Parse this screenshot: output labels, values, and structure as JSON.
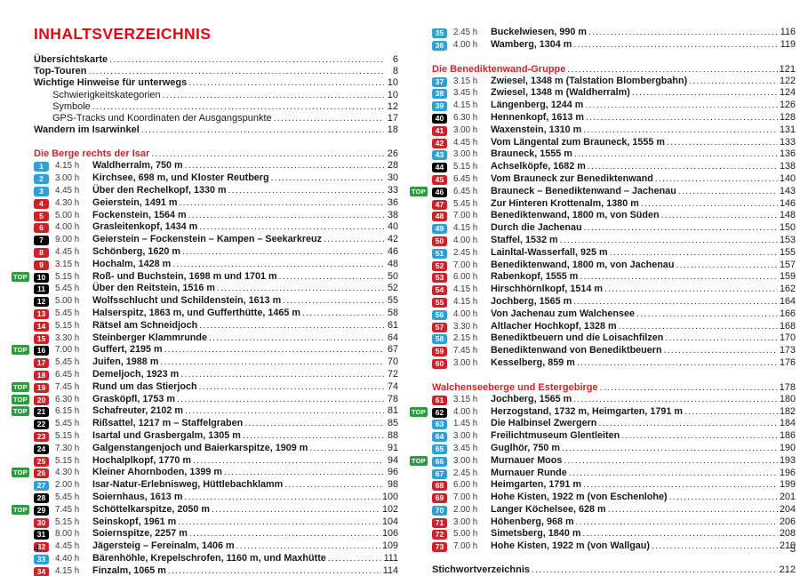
{
  "title": "INHALTSVERZEICHNIS",
  "labels": {
    "top": "TOP"
  },
  "colors": {
    "title_red": "#e30613",
    "heading_red": "#d2232a",
    "badge_easy_blue": "#2f9fd5",
    "badge_medium_red": "#cd2328",
    "badge_hard_black": "#000000",
    "top_badge_green": "#2f9b41"
  },
  "pages": [
    {
      "page_number": "4",
      "blocks": [
        {
          "type": "frontmatter",
          "items": [
            {
              "label": "Übersichtskarte",
              "page": "6",
              "bold": true,
              "indent": false
            },
            {
              "label": "Top-Touren",
              "page": "8",
              "bold": true,
              "indent": false
            },
            {
              "label": "Wichtige Hinweise für unterwegs",
              "page": "10",
              "bold": true,
              "indent": false
            },
            {
              "label": "Schwierigkeitskategorien",
              "page": "10",
              "bold": false,
              "indent": true
            },
            {
              "label": "Symbole",
              "page": "12",
              "bold": false,
              "indent": true
            },
            {
              "label": "GPS-Tracks und Koordinaten der Ausgangspunkte",
              "page": "17",
              "bold": false,
              "indent": true
            },
            {
              "label": "Wandern im Isarwinkel",
              "page": "18",
              "bold": true,
              "indent": false
            }
          ]
        },
        {
          "type": "heading",
          "label": "Die Berge rechts der Isar",
          "page": "26"
        },
        {
          "type": "tours",
          "items": [
            {
              "num": "1",
              "time": "4.15 h",
              "title": "Waldherralm, 750 m",
              "page": "28",
              "diff": "easy",
              "top": false
            },
            {
              "num": "2",
              "time": "3.00 h",
              "title": "Kirchsee, 698 m, und Kloster Reutberg",
              "page": "30",
              "diff": "easy",
              "top": false
            },
            {
              "num": "3",
              "time": "4.45 h",
              "title": "Über den Rechelkopf, 1330 m",
              "page": "33",
              "diff": "easy",
              "top": false
            },
            {
              "num": "4",
              "time": "4.30 h",
              "title": "Geierstein, 1491 m",
              "page": "36",
              "diff": "medium",
              "top": false
            },
            {
              "num": "5",
              "time": "5.00 h",
              "title": "Fockenstein, 1564 m",
              "page": "38",
              "diff": "medium",
              "top": false
            },
            {
              "num": "6",
              "time": "4.00 h",
              "title": "Grasleitenkopf, 1434 m",
              "page": "40",
              "diff": "medium",
              "top": false
            },
            {
              "num": "7",
              "time": "9.00 h",
              "title": "Geierstein – Fockenstein – Kampen – Seekarkreuz",
              "page": "42",
              "diff": "hard",
              "top": false
            },
            {
              "num": "8",
              "time": "4.45 h",
              "title": "Schönberg, 1620 m",
              "page": "46",
              "diff": "medium",
              "top": false
            },
            {
              "num": "9",
              "time": "3.15 h",
              "title": "Hochalm, 1428 m",
              "page": "48",
              "diff": "medium",
              "top": false
            },
            {
              "num": "10",
              "time": "5.15 h",
              "title": "Roß- und Buchstein, 1698 m und 1701 m",
              "page": "50",
              "diff": "hard",
              "top": true
            },
            {
              "num": "11",
              "time": "5.45 h",
              "title": "Über den Reitstein, 1516 m",
              "page": "52",
              "diff": "hard",
              "top": false
            },
            {
              "num": "12",
              "time": "5.00 h",
              "title": "Wolfsschlucht und Schildenstein, 1613 m",
              "page": "55",
              "diff": "hard",
              "top": false
            },
            {
              "num": "13",
              "time": "5.45 h",
              "title": "Halserspitz, 1863 m, und Gufferthütte, 1465 m",
              "page": "58",
              "diff": "medium",
              "top": false
            },
            {
              "num": "14",
              "time": "5.15 h",
              "title": "Rätsel am Schneidjoch",
              "page": "61",
              "diff": "medium",
              "top": false
            },
            {
              "num": "15",
              "time": "3.30 h",
              "title": "Steinberger Klammrunde",
              "page": "64",
              "diff": "medium",
              "top": false
            },
            {
              "num": "16",
              "time": "7.00 h",
              "title": "Guffert, 2195 m",
              "page": "67",
              "diff": "hard",
              "top": true
            },
            {
              "num": "17",
              "time": "5.45 h",
              "title": "Juifen, 1988 m",
              "page": "70",
              "diff": "medium",
              "top": false
            },
            {
              "num": "18",
              "time": "6.45 h",
              "title": "Demeljoch, 1923 m",
              "page": "72",
              "diff": "medium",
              "top": false
            },
            {
              "num": "19",
              "time": "7.45 h",
              "title": "Rund um das Stierjoch",
              "page": "74",
              "diff": "medium",
              "top": true
            },
            {
              "num": "20",
              "time": "6.30 h",
              "title": "Grasköpfl, 1753 m",
              "page": "78",
              "diff": "medium",
              "top": true
            },
            {
              "num": "21",
              "time": "6.15 h",
              "title": "Schafreuter, 2102 m",
              "page": "81",
              "diff": "hard",
              "top": true
            },
            {
              "num": "22",
              "time": "5.45 h",
              "title": "Rißsattel, 1217 m – Staffelgraben",
              "page": "85",
              "diff": "hard",
              "top": false
            },
            {
              "num": "23",
              "time": "5.15 h",
              "title": "Isartal und Grasbergalm, 1305 m",
              "page": "88",
              "diff": "medium",
              "top": false
            },
            {
              "num": "24",
              "time": "7.30 h",
              "title": "Galgenstangenjoch und Baierkarspitze, 1909 m",
              "page": "91",
              "diff": "hard",
              "top": false
            },
            {
              "num": "25",
              "time": "5.15 h",
              "title": "Hochalplkopf, 1770 m",
              "page": "94",
              "diff": "medium",
              "top": false
            },
            {
              "num": "26",
              "time": "4.30 h",
              "title": "Kleiner Ahornboden, 1399 m",
              "page": "96",
              "diff": "medium",
              "top": true
            },
            {
              "num": "27",
              "time": "2.00 h",
              "title": "Isar-Natur-Erlebnisweg, Hüttlebachklamm",
              "page": "98",
              "diff": "easy",
              "top": false
            },
            {
              "num": "28",
              "time": "5.45 h",
              "title": "Soiernhaus, 1613 m",
              "page": "100",
              "diff": "hard",
              "top": false
            },
            {
              "num": "29",
              "time": "7.45 h",
              "title": "Schöttelkarspitze, 2050 m",
              "page": "102",
              "diff": "hard",
              "top": true
            },
            {
              "num": "30",
              "time": "5.15 h",
              "title": "Seinskopf, 1961 m",
              "page": "104",
              "diff": "medium",
              "top": false
            },
            {
              "num": "31",
              "time": "8.00 h",
              "title": "Soiernspitze, 2257 m",
              "page": "106",
              "diff": "hard",
              "top": false
            },
            {
              "num": "32",
              "time": "4.45 h",
              "title": "Jägersteig – Fereinalm, 1406 m",
              "page": "109",
              "diff": "medium",
              "top": false
            },
            {
              "num": "33",
              "time": "4.40 h",
              "title": "Bärenhöhle, Krepelschrofen, 1160 m, und Maxhütte",
              "page": "111",
              "diff": "easy",
              "top": false
            },
            {
              "num": "34",
              "time": "4.15 h",
              "title": "Finzalm, 1065 m",
              "page": "114",
              "diff": "medium",
              "top": false
            }
          ]
        }
      ]
    },
    {
      "page_number": "5",
      "blocks": [
        {
          "type": "tours",
          "items": [
            {
              "num": "35",
              "time": "2.45 h",
              "title": "Buckelwiesen, 990 m",
              "page": "116",
              "diff": "easy",
              "top": false
            },
            {
              "num": "36",
              "time": "4.00 h",
              "title": "Wamberg, 1304 m",
              "page": "119",
              "diff": "easy",
              "top": false
            }
          ]
        },
        {
          "type": "heading",
          "label": "Die Benediktenwand-Gruppe",
          "page": "121"
        },
        {
          "type": "tours",
          "items": [
            {
              "num": "37",
              "time": "3.15 h",
              "title": "Zwiesel, 1348 m (Talstation Blombergbahn)",
              "page": "122",
              "diff": "easy",
              "top": false
            },
            {
              "num": "38",
              "time": "3.45 h",
              "title": "Zwiesel, 1348 m (Waldherralm)",
              "page": "124",
              "diff": "easy",
              "top": false
            },
            {
              "num": "39",
              "time": "4.15 h",
              "title": "Längenberg, 1244 m",
              "page": "126",
              "diff": "easy",
              "top": false
            },
            {
              "num": "40",
              "time": "6.30 h",
              "title": "Hennenkopf, 1613 m",
              "page": "128",
              "diff": "hard",
              "top": false
            },
            {
              "num": "41",
              "time": "3.00 h",
              "title": "Waxenstein, 1310 m",
              "page": "131",
              "diff": "medium",
              "top": false
            },
            {
              "num": "42",
              "time": "4.45 h",
              "title": "Vom Längental zum Brauneck, 1555 m",
              "page": "133",
              "diff": "medium",
              "top": false
            },
            {
              "num": "43",
              "time": "3.00 h",
              "title": "Brauneck, 1555 m",
              "page": "136",
              "diff": "easy",
              "top": false
            },
            {
              "num": "44",
              "time": "5.15 h",
              "title": "Achselköpfe, 1682 m",
              "page": "138",
              "diff": "hard",
              "top": false
            },
            {
              "num": "45",
              "time": "6.45 h",
              "title": "Vom Brauneck zur Benediktenwand",
              "page": "140",
              "diff": "medium",
              "top": false
            },
            {
              "num": "46",
              "time": "6.45 h",
              "title": "Brauneck – Benediktenwand – Jachenau",
              "page": "143",
              "diff": "hard",
              "top": true
            },
            {
              "num": "47",
              "time": "5.45 h",
              "title": "Zur Hinteren Krottenalm, 1380 m",
              "page": "146",
              "diff": "medium",
              "top": false
            },
            {
              "num": "48",
              "time": "7.00 h",
              "title": "Benediktenwand, 1800 m, von Süden",
              "page": "148",
              "diff": "medium",
              "top": false
            },
            {
              "num": "49",
              "time": "4.15 h",
              "title": "Durch die Jachenau",
              "page": "150",
              "diff": "easy",
              "top": false
            },
            {
              "num": "50",
              "time": "4.00 h",
              "title": "Staffel, 1532 m",
              "page": "153",
              "diff": "medium",
              "top": false
            },
            {
              "num": "51",
              "time": "2.45 h",
              "title": "Lainltal-Wasserfall, 925 m",
              "page": "155",
              "diff": "easy",
              "top": false
            },
            {
              "num": "52",
              "time": "7.00 h",
              "title": "Benediktenwand, 1800 m, von Jachenau",
              "page": "157",
              "diff": "medium",
              "top": false
            },
            {
              "num": "53",
              "time": "6.00 h",
              "title": "Rabenkopf, 1555 m",
              "page": "159",
              "diff": "medium",
              "top": false
            },
            {
              "num": "54",
              "time": "4.15 h",
              "title": "Hirschhörnlkopf, 1514 m",
              "page": "162",
              "diff": "medium",
              "top": false
            },
            {
              "num": "55",
              "time": "4.15 h",
              "title": "Jochberg, 1565 m",
              "page": "164",
              "diff": "medium",
              "top": false
            },
            {
              "num": "56",
              "time": "4.00 h",
              "title": "Von Jachenau zum Walchensee",
              "page": "166",
              "diff": "easy",
              "top": false
            },
            {
              "num": "57",
              "time": "3.30 h",
              "title": "Altlacher Hochkopf, 1328 m",
              "page": "168",
              "diff": "medium",
              "top": false
            },
            {
              "num": "58",
              "time": "2.15 h",
              "title": "Benediktbeuern und die Loisachfilzen",
              "page": "170",
              "diff": "easy",
              "top": false
            },
            {
              "num": "59",
              "time": "7.45 h",
              "title": "Benediktenwand von Benediktbeuern",
              "page": "173",
              "diff": "medium",
              "top": false
            },
            {
              "num": "60",
              "time": "3.00 h",
              "title": "Kesselberg, 859 m",
              "page": "176",
              "diff": "medium",
              "top": false
            }
          ]
        },
        {
          "type": "heading",
          "label": "Walchenseeberge und Estergebirge",
          "page": "178"
        },
        {
          "type": "tours",
          "items": [
            {
              "num": "61",
              "time": "3.15 h",
              "title": "Jochberg, 1565 m",
              "page": "180",
              "diff": "medium",
              "top": false
            },
            {
              "num": "62",
              "time": "4.00 h",
              "title": "Herzogstand, 1732 m, Heimgarten, 1791 m",
              "page": "182",
              "diff": "hard",
              "top": true
            },
            {
              "num": "63",
              "time": "1.45 h",
              "title": "Die Halbinsel Zwergern",
              "page": "184",
              "diff": "easy",
              "top": false
            },
            {
              "num": "64",
              "time": "3.00 h",
              "title": "Freilichtmuseum Glentleiten",
              "page": "186",
              "diff": "easy",
              "top": false
            },
            {
              "num": "65",
              "time": "3.45 h",
              "title": "Guglhör, 750 m",
              "page": "190",
              "diff": "easy",
              "top": false
            },
            {
              "num": "66",
              "time": "3.00 h",
              "title": "Murnauer Moos",
              "page": "193",
              "diff": "easy",
              "top": true
            },
            {
              "num": "67",
              "time": "2.45 h",
              "title": "Murnauer Runde",
              "page": "196",
              "diff": "easy",
              "top": false
            },
            {
              "num": "68",
              "time": "6.00 h",
              "title": "Heimgarten, 1791 m",
              "page": "199",
              "diff": "medium",
              "top": false
            },
            {
              "num": "69",
              "time": "7.00 h",
              "title": "Hohe Kisten, 1922 m (von Eschenlohe)",
              "page": "201",
              "diff": "medium",
              "top": false
            },
            {
              "num": "70",
              "time": "2.00 h",
              "title": "Langer Köchelsee, 628 m",
              "page": "204",
              "diff": "easy",
              "top": false
            },
            {
              "num": "71",
              "time": "3.00 h",
              "title": "Höhenberg, 968 m",
              "page": "206",
              "diff": "medium",
              "top": false
            },
            {
              "num": "72",
              "time": "5.00 h",
              "title": "Simetsberg, 1840 m",
              "page": "208",
              "diff": "medium",
              "top": false
            },
            {
              "num": "73",
              "time": "7.00 h",
              "title": "Hohe Kisten, 1922 m (von Wallgau)",
              "page": "210",
              "diff": "medium",
              "top": false
            }
          ]
        },
        {
          "type": "frontmatter",
          "items": [
            {
              "label": "Stichwortverzeichnis",
              "page": "212",
              "bold": true,
              "indent": false
            }
          ]
        }
      ]
    }
  ]
}
